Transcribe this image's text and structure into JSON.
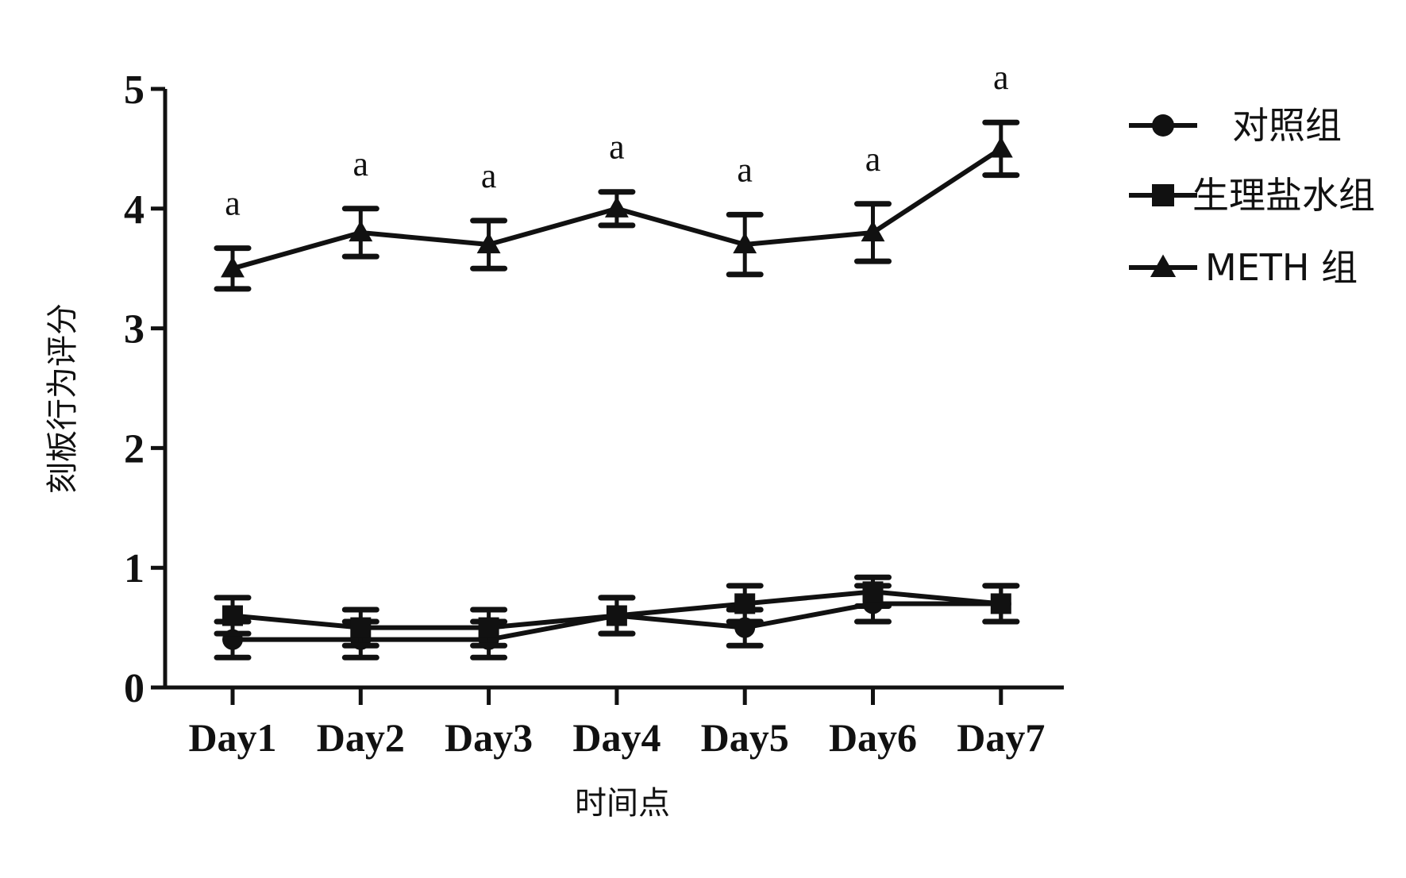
{
  "chart_data": {
    "type": "line",
    "title": "",
    "xlabel": "时间点",
    "ylabel": "刻板行为评分",
    "categories": [
      "Day1",
      "Day2",
      "Day3",
      "Day4",
      "Day5",
      "Day6",
      "Day7"
    ],
    "ylim": [
      0,
      5
    ],
    "yticks": [
      "0",
      "1",
      "2",
      "3",
      "4",
      "5"
    ],
    "grid": false,
    "legend_position": "top-right",
    "series": [
      {
        "name": "对照组",
        "marker": "circle",
        "values": [
          0.4,
          0.4,
          0.4,
          0.6,
          0.5,
          0.7,
          0.7
        ],
        "errors": [
          0.15,
          0.15,
          0.15,
          0.15,
          0.15,
          0.15,
          0.15
        ]
      },
      {
        "name": "生理盐水组",
        "marker": "square",
        "values": [
          0.6,
          0.5,
          0.5,
          0.6,
          0.7,
          0.8,
          0.7
        ],
        "errors": [
          0.15,
          0.15,
          0.15,
          0.15,
          0.15,
          0.12,
          0.15
        ]
      },
      {
        "name": "METH 组",
        "marker": "triangle",
        "values": [
          3.5,
          3.8,
          3.7,
          4.0,
          3.7,
          3.8,
          4.5
        ],
        "errors": [
          0.17,
          0.2,
          0.2,
          0.14,
          0.25,
          0.24,
          0.22
        ]
      }
    ],
    "annotations": [
      "a",
      "a",
      "a",
      "a",
      "a",
      "a",
      "a"
    ],
    "colors": {
      "line": "#111111",
      "background": "#ffffff"
    }
  }
}
